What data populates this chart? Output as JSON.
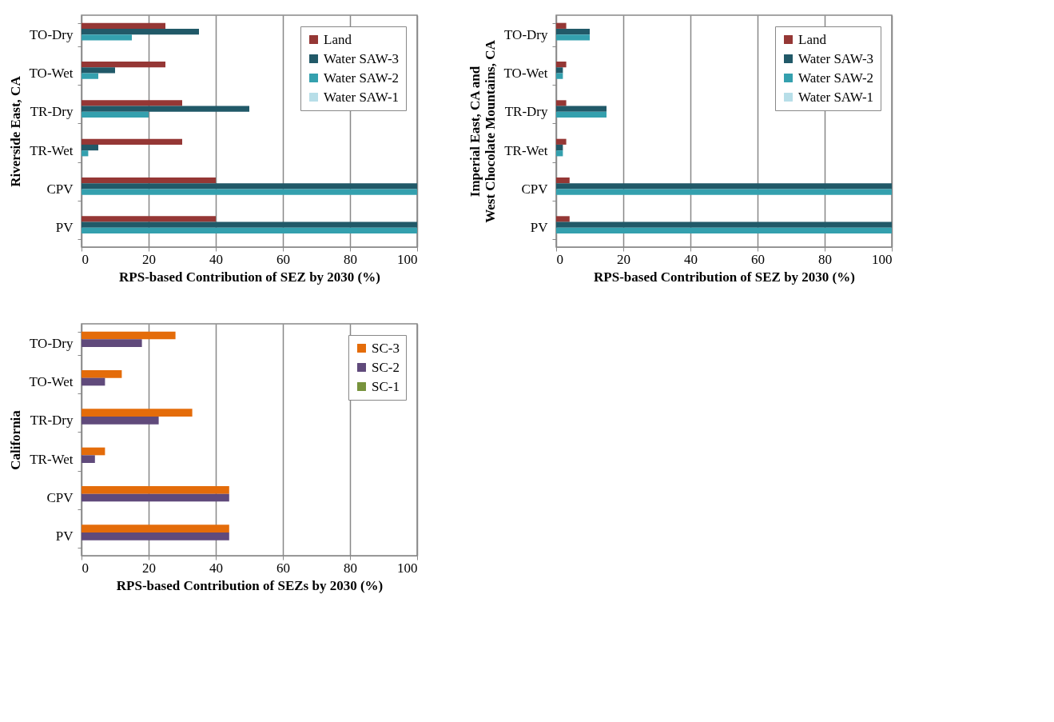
{
  "chart_data": [
    {
      "type": "bar",
      "orientation": "horizontal",
      "ylabel": "Riverside East, CA",
      "xlabel": "RPS-based Contribution of SEZ by 2030  (%)",
      "categories": [
        "TO-Dry",
        "TO-Wet",
        "TR-Dry",
        "TR-Wet",
        "CPV",
        "PV"
      ],
      "xlim": [
        0,
        100
      ],
      "xticks": [
        0,
        20,
        40,
        60,
        80,
        100
      ],
      "grid": "x",
      "legend": "top right",
      "series": [
        {
          "name": "Land",
          "color": "#953735",
          "values": [
            25,
            25,
            30,
            30,
            40,
            40
          ]
        },
        {
          "name": "Water SAW-3",
          "color": "#215968",
          "values": [
            35,
            10,
            50,
            5,
            100,
            100
          ]
        },
        {
          "name": "Water SAW-2",
          "color": "#34a0ae",
          "values": [
            15,
            5,
            20,
            2,
            100,
            100
          ]
        },
        {
          "name": "Water SAW-1",
          "color": "#b7dee8",
          "values": [
            0,
            0,
            0,
            0,
            0,
            0
          ]
        }
      ]
    },
    {
      "type": "bar",
      "orientation": "horizontal",
      "ylabel": "Imperial East, CA and\nWest Chocolate Mountains, CA",
      "xlabel": "RPS-based Contribution of SEZ by 2030  (%)",
      "categories": [
        "TO-Dry",
        "TO-Wet",
        "TR-Dry",
        "TR-Wet",
        "CPV",
        "PV"
      ],
      "xlim": [
        0,
        100
      ],
      "xticks": [
        0,
        20,
        40,
        60,
        80,
        100
      ],
      "grid": "x",
      "legend": "top right",
      "series": [
        {
          "name": "Land",
          "color": "#953735",
          "values": [
            3,
            3,
            3,
            3,
            4,
            4
          ]
        },
        {
          "name": "Water SAW-3",
          "color": "#215968",
          "values": [
            10,
            2,
            15,
            2,
            100,
            100
          ]
        },
        {
          "name": "Water SAW-2",
          "color": "#34a0ae",
          "values": [
            10,
            2,
            15,
            2,
            100,
            100
          ]
        },
        {
          "name": "Water SAW-1",
          "color": "#b7dee8",
          "values": [
            0,
            0,
            0,
            0,
            0,
            0
          ]
        }
      ]
    },
    {
      "type": "bar",
      "orientation": "horizontal",
      "ylabel": "California",
      "xlabel": "RPS-based Contribution of SEZs by 2030  (%)",
      "categories": [
        "TO-Dry",
        "TO-Wet",
        "TR-Dry",
        "TR-Wet",
        "CPV",
        "PV"
      ],
      "xlim": [
        0,
        100
      ],
      "xticks": [
        0,
        20,
        40,
        60,
        80,
        100
      ],
      "grid": "x",
      "legend": "top right",
      "series": [
        {
          "name": "SC-3",
          "color": "#e46c0a",
          "values": [
            28,
            12,
            33,
            7,
            44,
            44
          ]
        },
        {
          "name": "SC-2",
          "color": "#604a7b",
          "values": [
            18,
            7,
            23,
            4,
            44,
            44
          ]
        },
        {
          "name": "SC-1",
          "color": "#77933c",
          "values": [
            0,
            0,
            0,
            0,
            0,
            0
          ]
        }
      ]
    }
  ]
}
